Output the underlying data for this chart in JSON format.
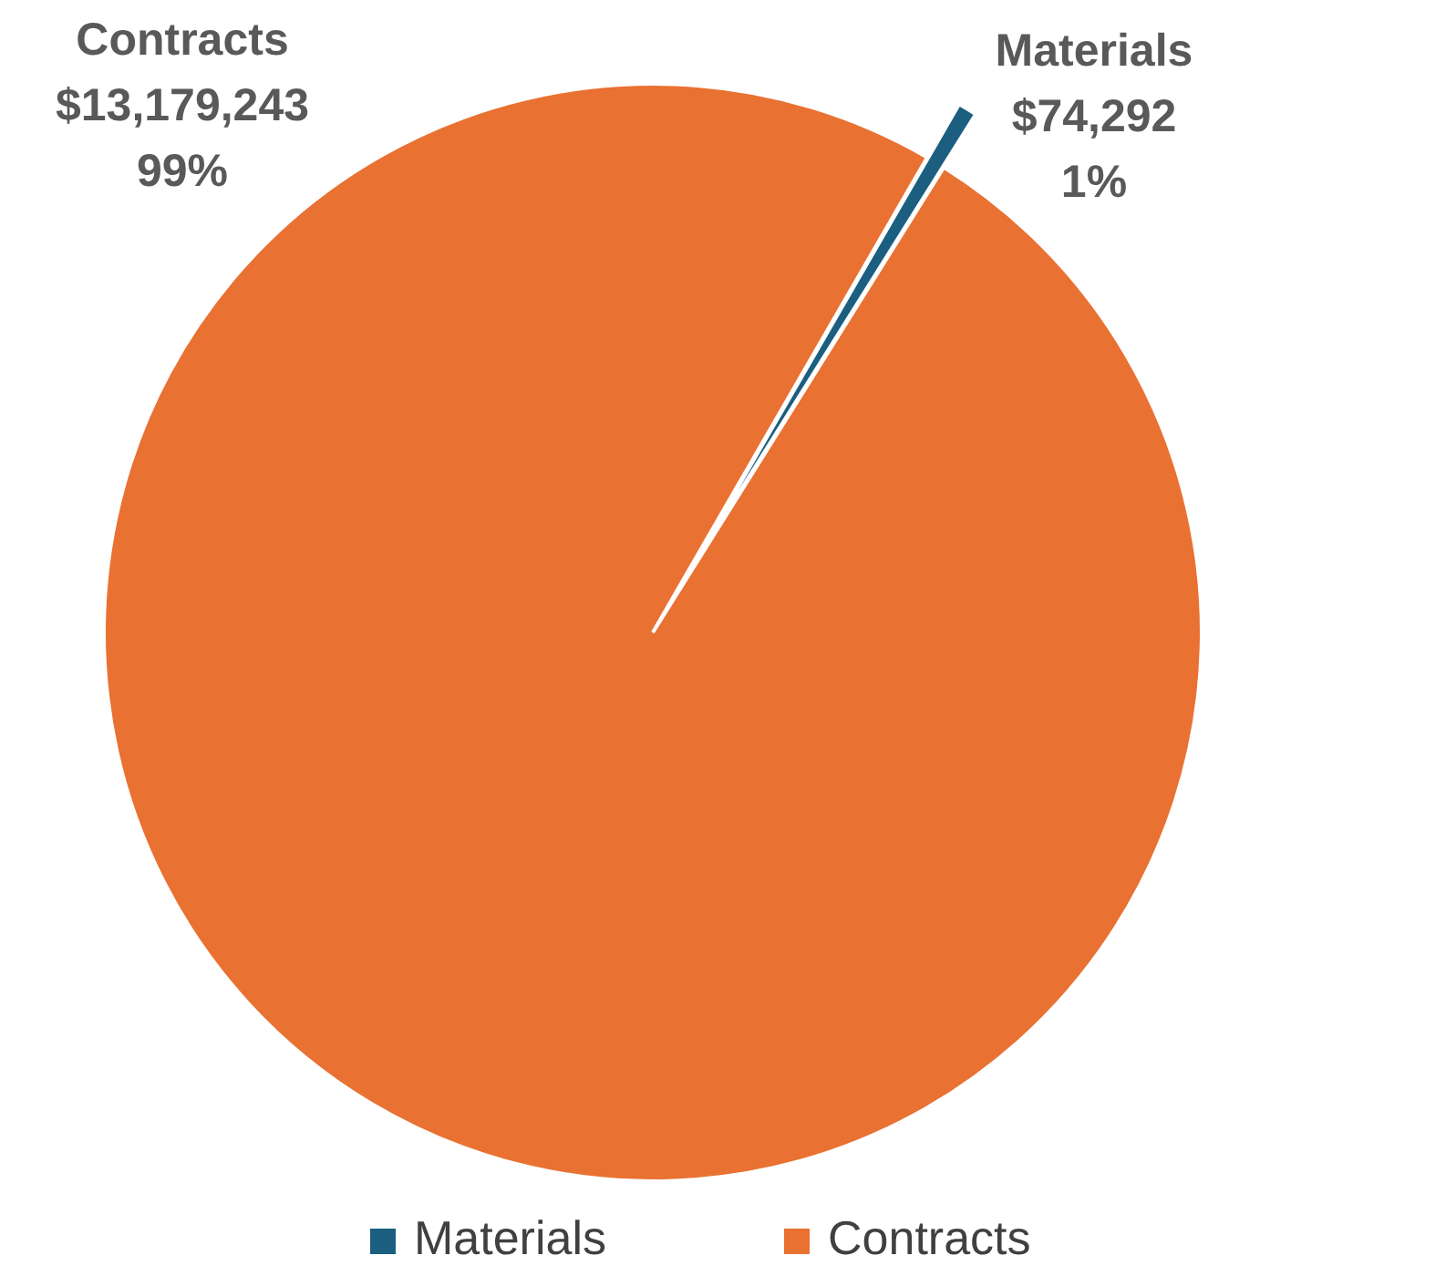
{
  "chart_data": {
    "type": "pie",
    "categories": [
      "Materials",
      "Contracts"
    ],
    "values": [
      74292,
      13179243
    ],
    "colors": [
      "#1b5e80",
      "#e97132"
    ],
    "value_labels": [
      "$74,292\n1%",
      "$13,179,243\n99%"
    ],
    "legend": "bottom"
  }
}
